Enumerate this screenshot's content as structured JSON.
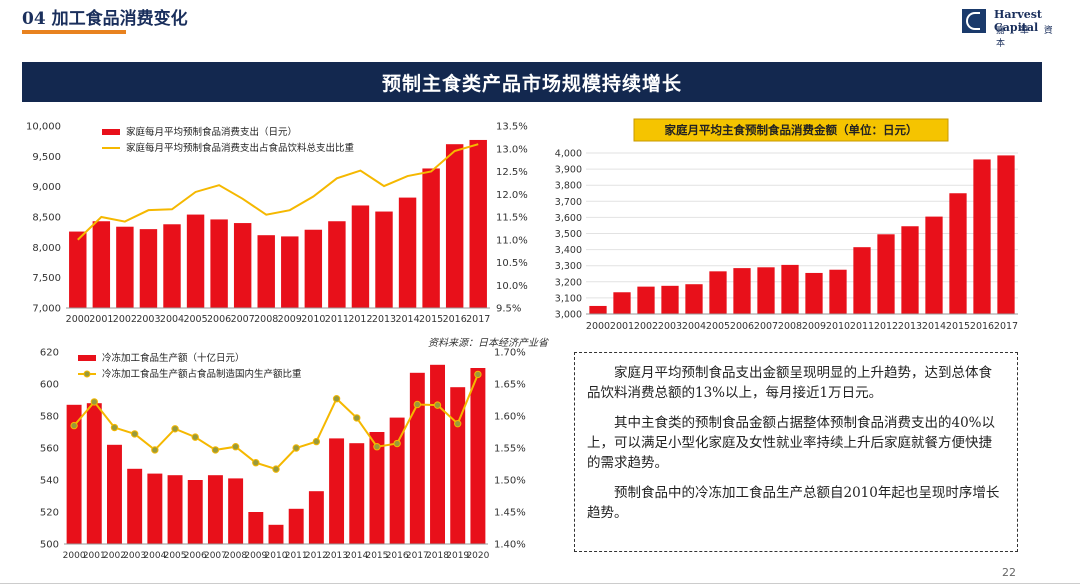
{
  "header": {
    "title": "04 加工食品消费变化",
    "logo_en": "Harvest Capital",
    "logo_cn": "嘉 華 資 本"
  },
  "banner": {
    "title": "预制主食类产品市场规模持续增长"
  },
  "source": "资料来源：日本经济产业省",
  "page_number": "22",
  "textbox": {
    "paragraphs": [
      "家庭月平均预制食品支出金额呈现明显的上升趋势，达到总体食品饮料消费总额的13%以上，每月接近1万日元。",
      "其中主食类的预制食品金额占据整体预制食品消费支出的40%以上，可以满足小型化家庭及女性就业率持续上升后家庭就餐方便快捷的需求趋势。",
      "预制食品中的冷冻加工食品生产总额自2010年起也呈现时序增长趋势。"
    ]
  },
  "colors": {
    "bar": "#e8101a",
    "line": "#f5b800",
    "navy": "#13284f",
    "accent": "#e8821f",
    "dot": "#9a9a3a"
  },
  "chart_data": [
    {
      "type": "bar",
      "categories": [
        "2000",
        "2001",
        "2002",
        "2003",
        "2004",
        "2005",
        "2006",
        "2007",
        "2008",
        "2009",
        "2010",
        "2011",
        "2012",
        "2013",
        "2014",
        "2015",
        "2016",
        "2017"
      ],
      "series": [
        {
          "name": "家庭每月平均预制食品消费支出（日元）",
          "type": "bar",
          "axis": "left",
          "values": [
            8260,
            8430,
            8340,
            8300,
            8380,
            8540,
            8460,
            8400,
            8200,
            8180,
            8290,
            8430,
            8690,
            8590,
            8820,
            9300,
            9700,
            9770
          ]
        },
        {
          "name": "家庭每月平均预制食品消费支出占食品饮料总支出比重",
          "type": "line",
          "axis": "right",
          "values": [
            11.0,
            11.5,
            11.4,
            11.65,
            11.67,
            12.05,
            12.2,
            11.9,
            11.55,
            11.65,
            11.95,
            12.35,
            12.52,
            12.18,
            12.4,
            12.5,
            12.95,
            13.1
          ]
        }
      ],
      "yticks_left": [
        "7,000",
        "7,500",
        "8,000",
        "8,500",
        "9,000",
        "9,500",
        "10,000"
      ],
      "ylim_left": [
        7000,
        10000
      ],
      "yticks_right": [
        "9.5%",
        "10.0%",
        "10.5%",
        "11.0%",
        "11.5%",
        "12.0%",
        "12.5%",
        "13.0%",
        "13.5%"
      ],
      "ylim_right": [
        9.5,
        13.5
      ]
    },
    {
      "type": "bar",
      "title": "家庭月平均主食预制食品消费金额（单位：日元）",
      "categories": [
        "2000",
        "2001",
        "2002",
        "2003",
        "2004",
        "2005",
        "2006",
        "2007",
        "2008",
        "2009",
        "2010",
        "2011",
        "2012",
        "2013",
        "2014",
        "2015",
        "2016",
        "2017"
      ],
      "values": [
        3050,
        3135,
        3170,
        3175,
        3185,
        3265,
        3285,
        3290,
        3305,
        3255,
        3275,
        3415,
        3495,
        3545,
        3605,
        3750,
        3960,
        3985
      ],
      "yticks": [
        "3,000",
        "3,100",
        "3,200",
        "3,300",
        "3,400",
        "3,500",
        "3,600",
        "3,700",
        "3,800",
        "3,900",
        "4,000"
      ],
      "ylim": [
        3000,
        4000
      ]
    },
    {
      "type": "bar",
      "categories": [
        "2000",
        "2001",
        "2002",
        "2003",
        "2004",
        "2005",
        "2006",
        "2007",
        "2008",
        "2009",
        "2010",
        "2011",
        "2012",
        "2013",
        "2014",
        "2015",
        "2016",
        "2017",
        "2018",
        "2019",
        "2020"
      ],
      "series": [
        {
          "name": "冷冻加工食品生产额（十亿日元）",
          "type": "bar",
          "axis": "left",
          "values": [
            587,
            588,
            562,
            547,
            544,
            543,
            540,
            543,
            541,
            520,
            512,
            522,
            533,
            566,
            563,
            570,
            579,
            607,
            612,
            598,
            610
          ]
        },
        {
          "name": "冷冻加工食品生产额占食品制造国内生产额比重",
          "type": "line",
          "axis": "right",
          "values": [
            1.585,
            1.622,
            1.582,
            1.572,
            1.547,
            1.58,
            1.567,
            1.547,
            1.552,
            1.527,
            1.517,
            1.55,
            1.56,
            1.627,
            1.597,
            1.552,
            1.557,
            1.618,
            1.617,
            1.588,
            1.665
          ]
        }
      ],
      "yticks_left": [
        "500",
        "520",
        "540",
        "560",
        "580",
        "600",
        "620"
      ],
      "ylim_left": [
        500,
        620
      ],
      "yticks_right": [
        "1.40%",
        "1.45%",
        "1.50%",
        "1.55%",
        "1.60%",
        "1.65%",
        "1.70%"
      ],
      "ylim_right": [
        1.4,
        1.7
      ]
    }
  ]
}
